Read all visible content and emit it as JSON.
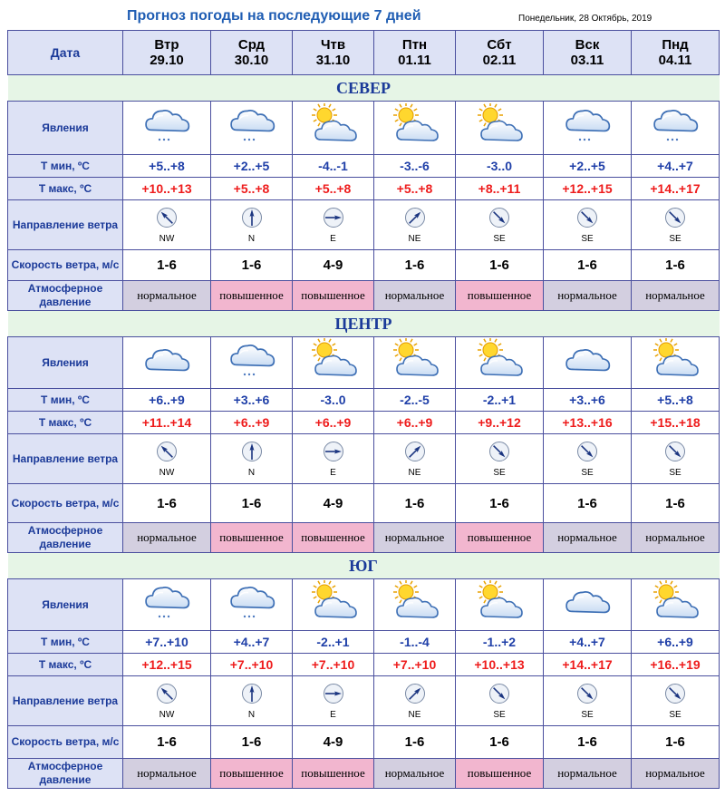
{
  "header": {
    "title": "Прогноз погоды на последующие 7 дней",
    "date": "Понедельник, 28 Октябрь, 2019"
  },
  "row_labels": {
    "date": "Дата",
    "phenomena": "Явления",
    "tmin": "Т мин, ºC",
    "tmax": "Т макс, ºC",
    "wind_dir": "Направление ветра",
    "wind_speed": "Скорость ветра, м/с",
    "pressure": "Атмосферное давление"
  },
  "days": [
    {
      "name": "Втр",
      "date": "29.10"
    },
    {
      "name": "Срд",
      "date": "30.10"
    },
    {
      "name": "Чтв",
      "date": "31.10"
    },
    {
      "name": "Птн",
      "date": "01.11"
    },
    {
      "name": "Сбт",
      "date": "02.11"
    },
    {
      "name": "Вск",
      "date": "03.11"
    },
    {
      "name": "Пнд",
      "date": "04.11"
    }
  ],
  "regions": [
    {
      "name": "СЕВЕР",
      "icons": [
        "cloud-snow-icon",
        "cloud-snow-icon",
        "sun-cloud-icon",
        "sun-cloud-icon",
        "sun-cloud-icon",
        "cloud-snow-icon",
        "cloud-snow-icon"
      ],
      "tmin": [
        "+5..+8",
        "+2..+5",
        "-4..-1",
        "-3..-6",
        "-3..0",
        "+2..+5",
        "+4..+7"
      ],
      "tmax": [
        "+10..+13",
        "+5..+8",
        "+5..+8",
        "+5..+8",
        "+8..+11",
        "+12..+15",
        "+14..+17"
      ],
      "wind_dir": [
        "NW",
        "N",
        "E",
        "NE",
        "SE",
        "SE",
        "SE"
      ],
      "wind_speed": [
        "1-6",
        "1-6",
        "4-9",
        "1-6",
        "1-6",
        "1-6",
        "1-6"
      ],
      "pressure": [
        "нормальное",
        "повышенное",
        "повышенное",
        "нормальное",
        "повышенное",
        "нормальное",
        "нормальное"
      ]
    },
    {
      "name": "ЦЕНТР",
      "icons": [
        "cloud-icon",
        "cloud-snow-icon",
        "sun-cloud-icon",
        "sun-cloud-icon",
        "sun-cloud-icon",
        "cloud-icon",
        "sun-cloud-icon"
      ],
      "tmin": [
        "+6..+9",
        "+3..+6",
        "-3..0",
        "-2..-5",
        "-2..+1",
        "+3..+6",
        "+5..+8"
      ],
      "tmax": [
        "+11..+14",
        "+6..+9",
        "+6..+9",
        "+6..+9",
        "+9..+12",
        "+13..+16",
        "+15..+18"
      ],
      "wind_dir": [
        "NW",
        "N",
        "E",
        "NE",
        "SE",
        "SE",
        "SE"
      ],
      "wind_speed": [
        "1-6",
        "1-6",
        "4-9",
        "1-6",
        "1-6",
        "1-6",
        "1-6"
      ],
      "pressure": [
        "нормальное",
        "повышенное",
        "повышенное",
        "нормальное",
        "повышенное",
        "нормальное",
        "нормальное"
      ]
    },
    {
      "name": "ЮГ",
      "icons": [
        "cloud-snow-icon",
        "cloud-snow-icon",
        "sun-cloud-icon",
        "sun-cloud-icon",
        "sun-cloud-icon",
        "cloud-icon",
        "sun-cloud-icon"
      ],
      "tmin": [
        "+7..+10",
        "+4..+7",
        "-2..+1",
        "-1..-4",
        "-1..+2",
        "+4..+7",
        "+6..+9"
      ],
      "tmax": [
        "+12..+15",
        "+7..+10",
        "+7..+10",
        "+7..+10",
        "+10..+13",
        "+14..+17",
        "+16..+19"
      ],
      "wind_dir": [
        "NW",
        "N",
        "E",
        "NE",
        "SE",
        "SE",
        "SE"
      ],
      "wind_speed": [
        "1-6",
        "1-6",
        "4-9",
        "1-6",
        "1-6",
        "1-6",
        "1-6"
      ],
      "pressure": [
        "нормальное",
        "повышенное",
        "повышенное",
        "нормальное",
        "повышенное",
        "нормальное",
        "нормальное"
      ]
    }
  ],
  "colors": {
    "title": "#1f5db3",
    "label_bg": "#dde2f5",
    "region_bg": "#e6f5e6",
    "tmin": "#1f3fa8",
    "tmax": "#ee1c1c",
    "pressure_normal": "#d3cfe0",
    "pressure_high": "#f2b6cf"
  }
}
